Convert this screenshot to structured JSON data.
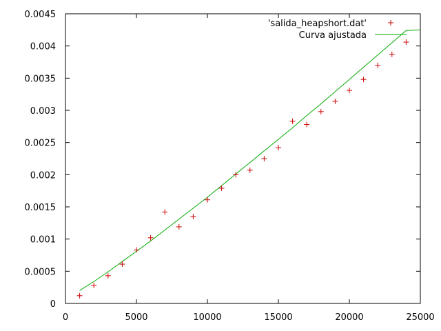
{
  "chart_data": {
    "type": "scatter",
    "title": "",
    "xlabel": "",
    "ylabel": "",
    "xlim": [
      0,
      25000
    ],
    "ylim": [
      0,
      0.0045
    ],
    "x_ticks": [
      0,
      5000,
      10000,
      15000,
      20000,
      25000
    ],
    "x_tick_labels": [
      "0",
      "5000",
      "10000",
      "15000",
      "20000",
      "25000"
    ],
    "y_ticks": [
      0,
      0.0005,
      0.001,
      0.0015,
      0.002,
      0.0025,
      0.003,
      0.0035,
      0.004,
      0.0045
    ],
    "y_tick_labels": [
      "0",
      "0.0005",
      "0.001",
      "0.0015",
      "0.002",
      "0.0025",
      "0.003",
      "0.0035",
      "0.004",
      "0.0045"
    ],
    "grid": false,
    "legend_position": "top-right",
    "series": [
      {
        "name": "'salida_heapshort.dat'",
        "kind": "points",
        "marker": "plus",
        "color": "#cc0000",
        "x": [
          1000,
          2000,
          3000,
          4000,
          5000,
          6000,
          7000,
          8000,
          9000,
          10000,
          11000,
          12000,
          13000,
          14000,
          15000,
          16000,
          17000,
          18000,
          19000,
          20000,
          21000,
          22000,
          23000,
          24000
        ],
        "y": [
          0.00012,
          0.00028,
          0.00043,
          0.00061,
          0.00083,
          0.00102,
          0.00142,
          0.00119,
          0.00135,
          0.00161,
          0.00179,
          0.002,
          0.00207,
          0.00225,
          0.00242,
          0.00283,
          0.00278,
          0.00298,
          0.00314,
          0.00331,
          0.00348,
          0.0037,
          0.00387,
          0.00406
        ]
      },
      {
        "name": "Curva ajustada",
        "kind": "line",
        "color": "#00aa00",
        "x": [
          1000,
          2000,
          3000,
          4000,
          5000,
          6000,
          7000,
          8000,
          9000,
          10000,
          11000,
          12000,
          13000,
          14000,
          15000,
          16000,
          17000,
          18000,
          19000,
          20000,
          21000,
          22000,
          23000,
          24000,
          25000
        ],
        "y": [
          0.0002,
          0.00034,
          0.00049,
          0.00065,
          0.00081,
          0.00097,
          0.00114,
          0.00131,
          0.00148,
          0.00165,
          0.00183,
          0.00201,
          0.00219,
          0.00237,
          0.00255,
          0.00273,
          0.00292,
          0.0031,
          0.00329,
          0.00348,
          0.00367,
          0.00386,
          0.00405,
          0.00424,
          0.00425
        ]
      }
    ]
  }
}
